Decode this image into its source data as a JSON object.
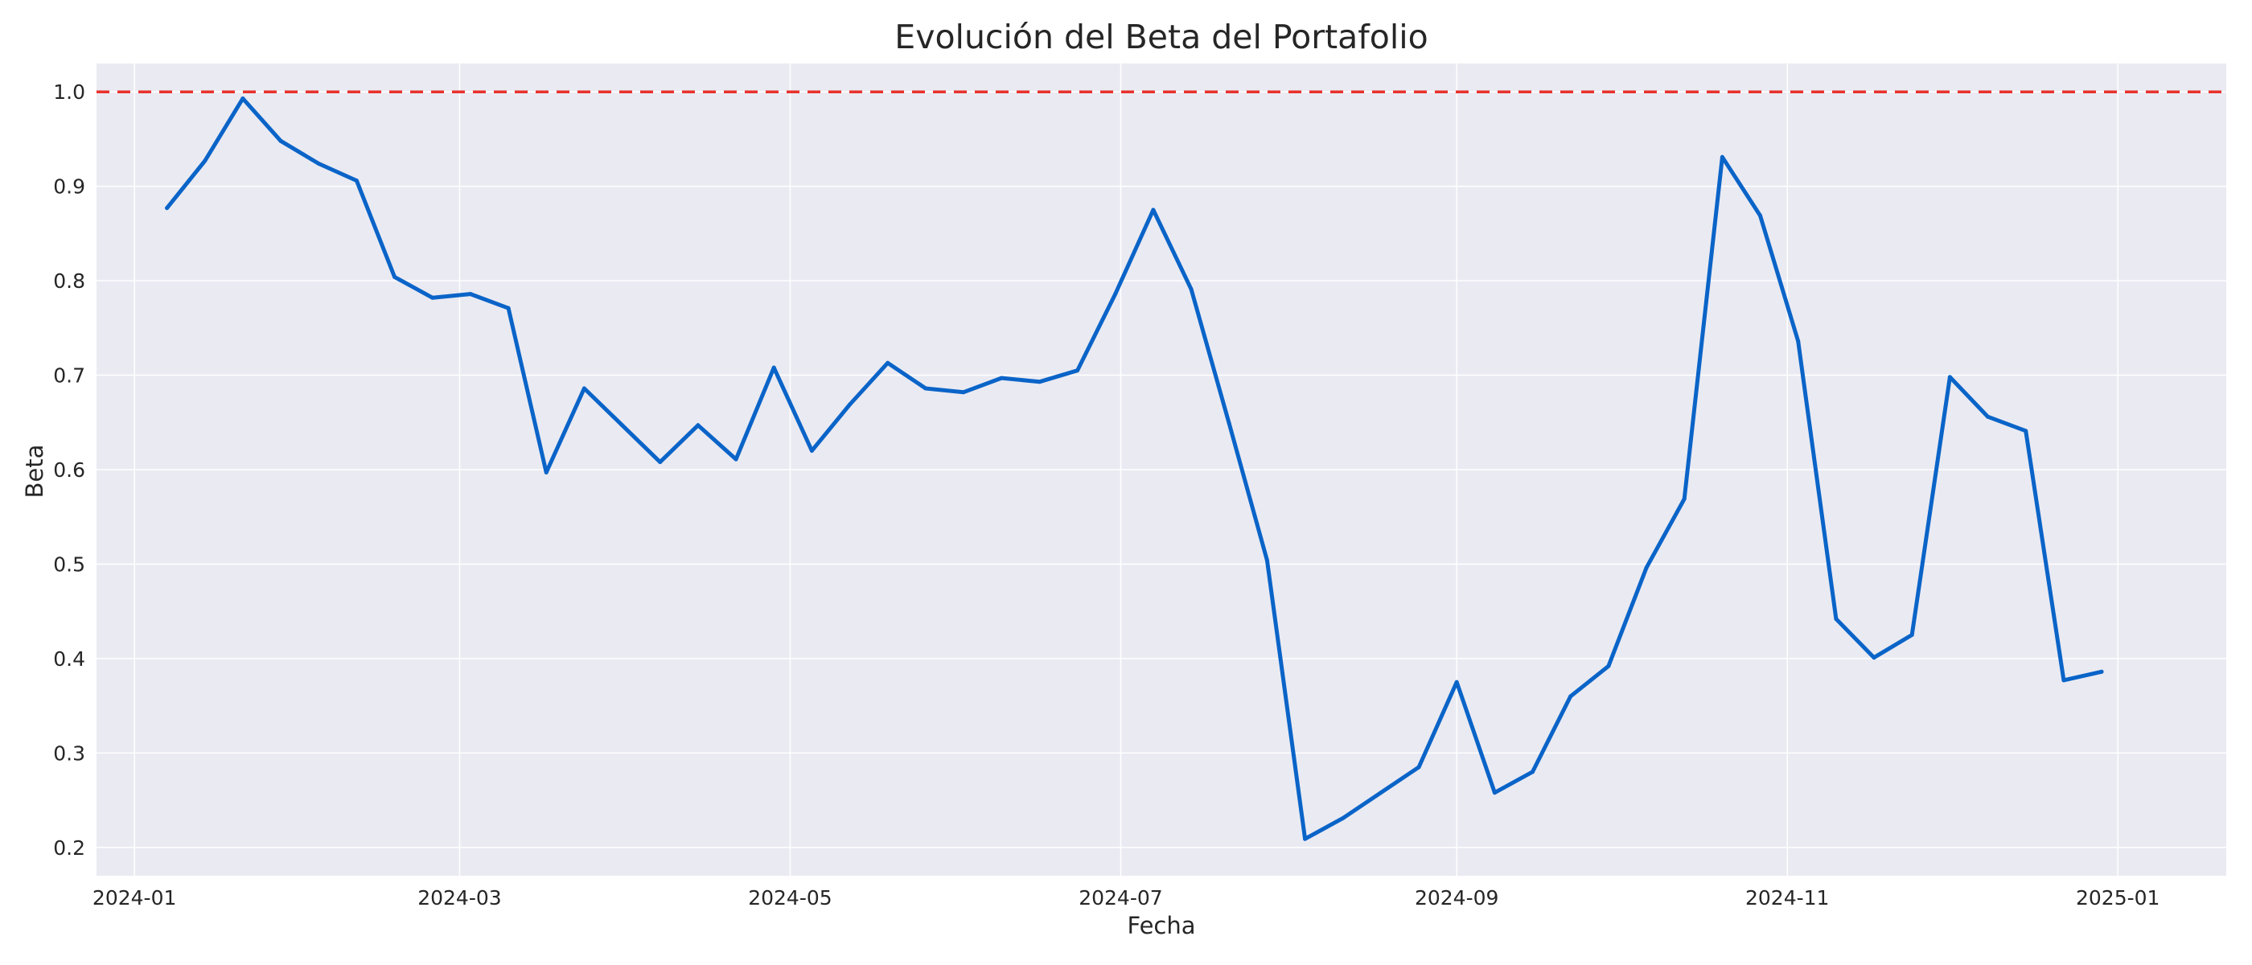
{
  "chart_data": {
    "type": "line",
    "title": "Evolución del Beta del Portafolio",
    "xlabel": "Fecha",
    "ylabel": "Beta",
    "xlim": [
      "2023-12-25",
      "2025-01-21"
    ],
    "ylim": [
      0.17,
      1.03
    ],
    "yticks": [
      0.2,
      0.3,
      0.4,
      0.5,
      0.6,
      0.7,
      0.8,
      0.9,
      1.0
    ],
    "ytick_labels": [
      "0.2",
      "0.3",
      "0.4",
      "0.5",
      "0.6",
      "0.7",
      "0.8",
      "0.9",
      "1.0"
    ],
    "xticks": [
      "2024-01-01",
      "2024-03-01",
      "2024-05-01",
      "2024-07-01",
      "2024-09-01",
      "2024-11-01",
      "2025-01-01"
    ],
    "xtick_labels": [
      "2024-01",
      "2024-03",
      "2024-05",
      "2024-07",
      "2024-09",
      "2024-11",
      "2025-01"
    ],
    "grid": true,
    "reference_line": {
      "y": 1.0,
      "style": "dashed",
      "color": "#e8322d"
    },
    "series_color": "#0a64c8",
    "background_color": "#eaeaf2",
    "x": [
      "2024-01-07",
      "2024-01-14",
      "2024-01-21",
      "2024-01-28",
      "2024-02-04",
      "2024-02-11",
      "2024-02-18",
      "2024-02-25",
      "2024-03-03",
      "2024-03-10",
      "2024-03-17",
      "2024-03-24",
      "2024-03-31",
      "2024-04-07",
      "2024-04-14",
      "2024-04-21",
      "2024-04-28",
      "2024-05-05",
      "2024-05-12",
      "2024-05-19",
      "2024-05-26",
      "2024-06-02",
      "2024-06-09",
      "2024-06-16",
      "2024-06-23",
      "2024-06-30",
      "2024-07-07",
      "2024-07-14",
      "2024-07-21",
      "2024-07-28",
      "2024-08-04",
      "2024-08-11",
      "2024-08-18",
      "2024-08-25",
      "2024-09-01",
      "2024-09-08",
      "2024-09-15",
      "2024-09-22",
      "2024-09-29",
      "2024-10-06",
      "2024-10-13",
      "2024-10-20",
      "2024-10-27",
      "2024-11-03",
      "2024-11-10",
      "2024-11-17",
      "2024-11-24",
      "2024-12-01",
      "2024-12-08",
      "2024-12-15",
      "2024-12-22",
      "2024-12-29"
    ],
    "series": [
      {
        "values": [
          0.877,
          0.927,
          0.993,
          0.948,
          0.924,
          0.906,
          0.804,
          0.782,
          0.786,
          0.771,
          0.597,
          0.686,
          0.647,
          0.608,
          0.647,
          0.611,
          0.708,
          0.62,
          0.669,
          0.713,
          0.686,
          0.682,
          0.697,
          0.693,
          0.705,
          0.786,
          0.875,
          0.791,
          0.649,
          0.504,
          0.209,
          0.231,
          0.258,
          0.285,
          0.375,
          0.258,
          0.28,
          0.36,
          0.392,
          0.496,
          0.569,
          0.931,
          0.869,
          0.736,
          0.442,
          0.401,
          0.425,
          0.698,
          0.656,
          0.641,
          0.377,
          0.386
        ]
      }
    ]
  }
}
